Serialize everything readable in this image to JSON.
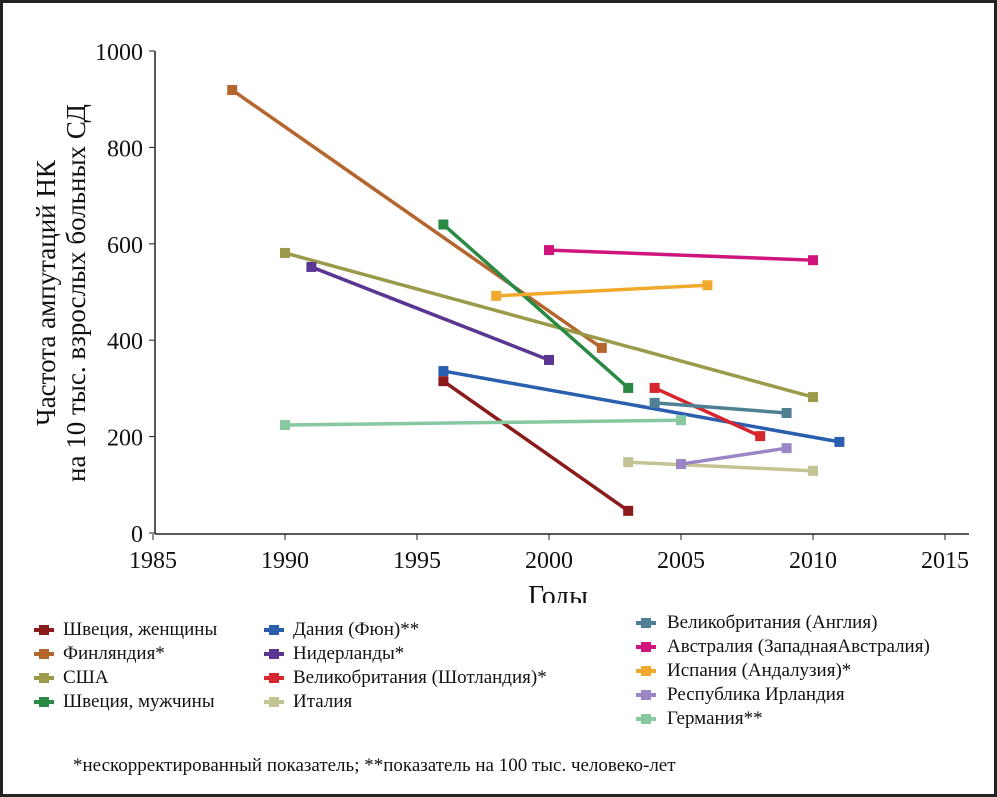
{
  "chart_data": {
    "type": "line",
    "title": "",
    "xlabel": "Годы",
    "ylabel_line1": "Частота ампутаций НК",
    "ylabel_line2": "на 10 тыс. взрослых больных СД",
    "xlim": [
      1985,
      2015
    ],
    "ylim": [
      0,
      1000
    ],
    "xticks": [
      "1985",
      "1990",
      "1995",
      "2000",
      "2005",
      "2010",
      "2015"
    ],
    "yticks": [
      "0",
      "200",
      "400",
      "600",
      "800",
      "1000"
    ],
    "grid": false,
    "legend_position": "bottom",
    "series": [
      {
        "name": "Швеция, женщины",
        "color": "#8b1a1a",
        "x": [
          1996,
          2003
        ],
        "y": [
          315,
          46
        ]
      },
      {
        "name": "Финляндия*",
        "color": "#b5652e",
        "x": [
          1988,
          2002
        ],
        "y": [
          919,
          384
        ]
      },
      {
        "name": "США",
        "color": "#9a9a4a",
        "x": [
          1990,
          2010
        ],
        "y": [
          581,
          282
        ]
      },
      {
        "name": "Швеция, мужчины",
        "color": "#2a8a45",
        "x": [
          1996,
          2003
        ],
        "y": [
          640,
          301
        ]
      },
      {
        "name": "Дания (Фюн)**",
        "color": "#2a5fb0",
        "x": [
          1996,
          2011
        ],
        "y": [
          336,
          189
        ]
      },
      {
        "name": "Нидерланды*",
        "color": "#5a3592",
        "x": [
          1991,
          2000
        ],
        "y": [
          552,
          359
        ]
      },
      {
        "name": "Великобритания (Шотландия)*",
        "color": "#d8262e",
        "x": [
          2004,
          2008
        ],
        "y": [
          301,
          201
        ]
      },
      {
        "name": "Италия",
        "color": "#c4c393",
        "x": [
          2003,
          2010
        ],
        "y": [
          147,
          129
        ]
      },
      {
        "name": "Великобритания (Англия)",
        "color": "#4e7f92",
        "x": [
          2004,
          2009
        ],
        "y": [
          270,
          249
        ]
      },
      {
        "name": "Австралия (ЗападнаяАвстралия)",
        "color": "#d0147e",
        "x": [
          2000,
          2010
        ],
        "y": [
          587,
          566
        ]
      },
      {
        "name": "Испания (Андалузия)*",
        "color": "#f0a92c",
        "x": [
          1998,
          2006
        ],
        "y": [
          492,
          514
        ]
      },
      {
        "name": "Республика Ирландия",
        "color": "#9a86c4",
        "x": [
          2005,
          2009
        ],
        "y": [
          143,
          176
        ]
      },
      {
        "name": "Германия**",
        "color": "#88c8a0",
        "x": [
          1990,
          2005
        ],
        "y": [
          224,
          234
        ]
      }
    ]
  },
  "footnote": "*нескорректированный показатель; **показатель на 100 тыс. человеко-лет"
}
